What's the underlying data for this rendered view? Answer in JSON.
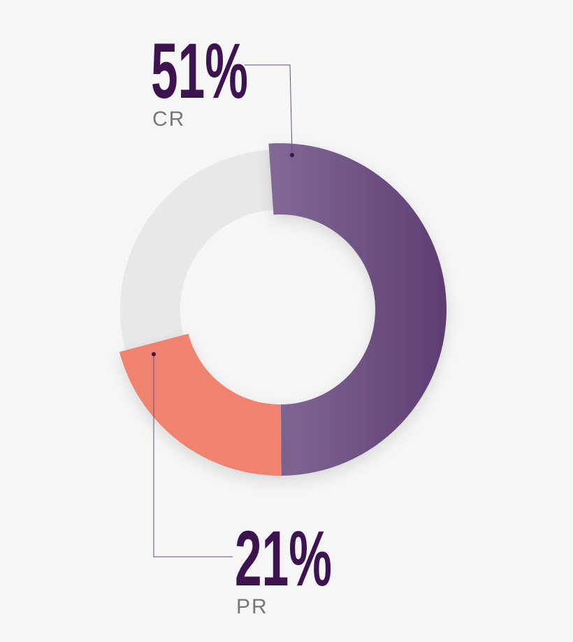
{
  "chart_data": {
    "type": "donut",
    "categories": [
      "CR",
      "PR"
    ],
    "values": [
      51,
      21
    ],
    "value_labels": [
      "51%",
      "21%"
    ],
    "colors": [
      "#6a4a80",
      "#f08270"
    ]
  }
}
